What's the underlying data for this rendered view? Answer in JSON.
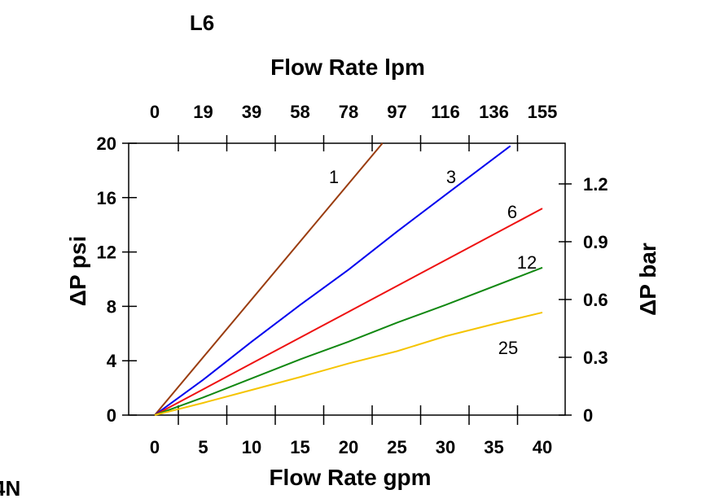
{
  "chart_data": {
    "type": "line",
    "title": "L6",
    "corner_label": "4N",
    "xlabel": "Flow Rate gpm",
    "x2label": "Flow Rate lpm",
    "ylabel": "ΔP psi",
    "y2label": "ΔP bar",
    "xlim": [
      0,
      40
    ],
    "ylim": [
      0,
      20
    ],
    "xticks": [
      "0",
      "5",
      "10",
      "15",
      "20",
      "25",
      "30",
      "35",
      "40"
    ],
    "x2ticks": [
      "0",
      "19",
      "39",
      "58",
      "78",
      "97",
      "116",
      "136",
      "155"
    ],
    "yticks": [
      "0",
      "4",
      "8",
      "12",
      "16",
      "20"
    ],
    "y2ticks": [
      "0",
      "0.3",
      "0.6",
      "0.9",
      "1.2"
    ],
    "grid": false,
    "series": [
      {
        "name": "1",
        "color": "#9a3c0f",
        "points": [
          [
            0,
            0
          ],
          [
            23.5,
            20
          ]
        ]
      },
      {
        "name": "3",
        "color": "#0000ee",
        "points": [
          [
            0,
            0
          ],
          [
            5,
            2.6
          ],
          [
            10,
            5.4
          ],
          [
            15,
            8.1
          ],
          [
            20,
            10.7
          ],
          [
            25,
            13.5
          ],
          [
            30,
            16.2
          ],
          [
            36.7,
            19.8
          ]
        ]
      },
      {
        "name": "6",
        "color": "#ee1111",
        "points": [
          [
            0,
            0
          ],
          [
            10,
            3.8
          ],
          [
            20,
            7.6
          ],
          [
            30,
            11.4
          ],
          [
            40,
            15.2
          ]
        ]
      },
      {
        "name": "12",
        "color": "#118811",
        "points": [
          [
            0,
            0
          ],
          [
            5,
            1.3
          ],
          [
            10,
            2.7
          ],
          [
            15,
            4.1
          ],
          [
            20,
            5.4
          ],
          [
            25,
            6.8
          ],
          [
            30,
            8.1
          ],
          [
            40,
            10.85
          ]
        ]
      },
      {
        "name": "25",
        "color": "#f5c400",
        "points": [
          [
            0,
            0
          ],
          [
            5,
            0.9
          ],
          [
            10,
            1.85
          ],
          [
            15,
            2.8
          ],
          [
            20,
            3.8
          ],
          [
            25,
            4.7
          ],
          [
            30,
            5.8
          ],
          [
            35,
            6.7
          ],
          [
            40,
            7.55
          ]
        ]
      }
    ]
  }
}
